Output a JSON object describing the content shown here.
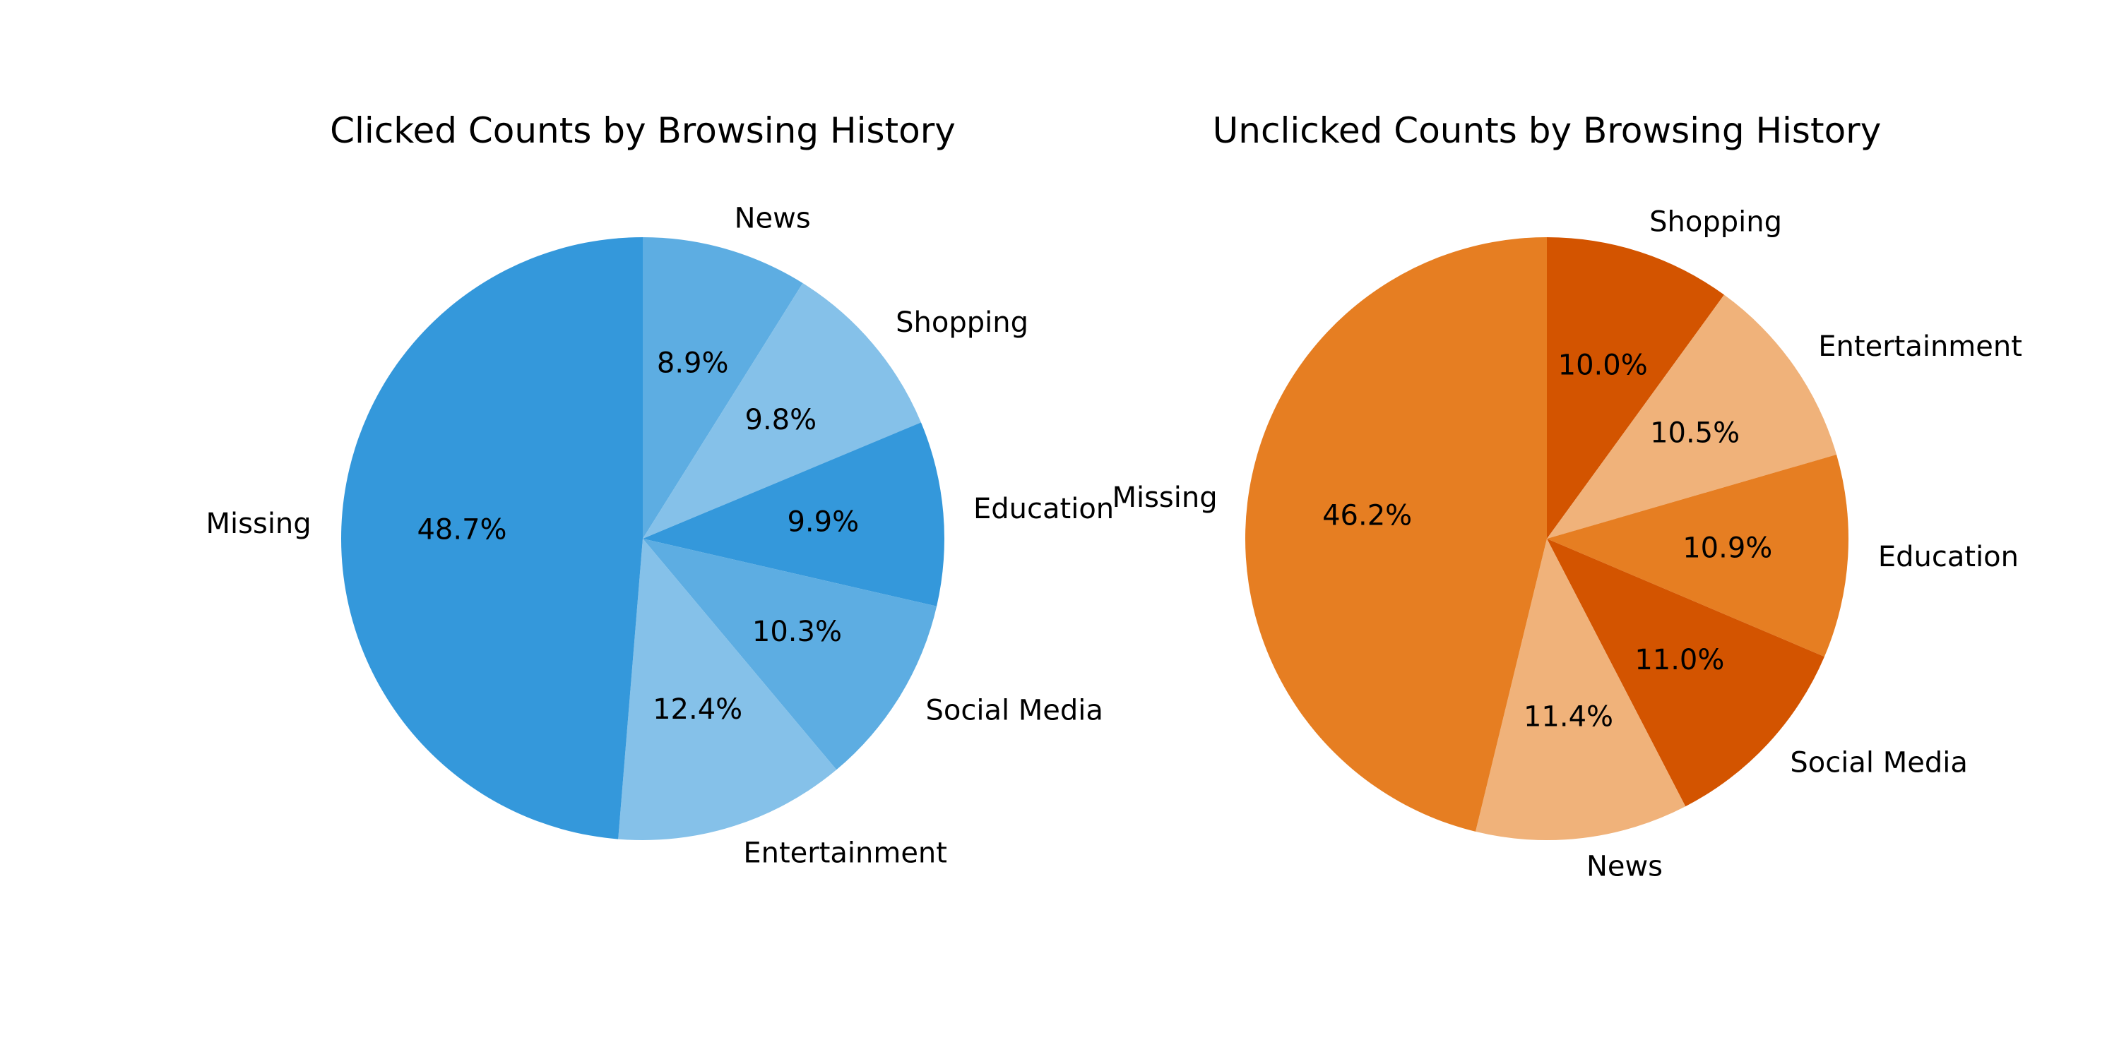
{
  "chart_data": [
    {
      "type": "pie",
      "title": "Clicked Counts by Browsing History",
      "start_angle_deg": 90,
      "direction": "clockwise",
      "slices": [
        {
          "label": "News",
          "value": 8.9,
          "pct_label": "8.9%",
          "color": "#5dade2"
        },
        {
          "label": "Shopping",
          "value": 9.8,
          "pct_label": "9.8%",
          "color": "#85c1e9"
        },
        {
          "label": "Education",
          "value": 9.9,
          "pct_label": "9.9%",
          "color": "#3498db"
        },
        {
          "label": "Social Media",
          "value": 10.3,
          "pct_label": "10.3%",
          "color": "#5dade2"
        },
        {
          "label": "Entertainment",
          "value": 12.4,
          "pct_label": "12.4%",
          "color": "#85c1e9"
        },
        {
          "label": "Missing",
          "value": 48.7,
          "pct_label": "48.7%",
          "color": "#3498db"
        }
      ]
    },
    {
      "type": "pie",
      "title": "Unclicked Counts by Browsing History",
      "start_angle_deg": 90,
      "direction": "clockwise",
      "slices": [
        {
          "label": "Shopping",
          "value": 10.0,
          "pct_label": "10.0%",
          "color": "#d35400"
        },
        {
          "label": "Entertainment",
          "value": 10.5,
          "pct_label": "10.5%",
          "color": "#f0b27a"
        },
        {
          "label": "Education",
          "value": 10.9,
          "pct_label": "10.9%",
          "color": "#e67e22"
        },
        {
          "label": "Social Media",
          "value": 11.0,
          "pct_label": "11.0%",
          "color": "#d35400"
        },
        {
          "label": "News",
          "value": 11.4,
          "pct_label": "11.4%",
          "color": "#f0b27a"
        },
        {
          "label": "Missing",
          "value": 46.2,
          "pct_label": "46.2%",
          "color": "#e67e22"
        }
      ]
    }
  ]
}
